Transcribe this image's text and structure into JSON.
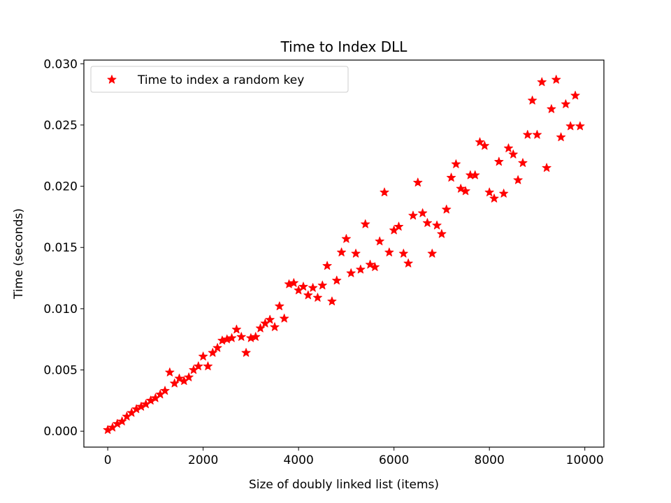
{
  "chart_data": {
    "type": "scatter",
    "title": "Time to Index DLL",
    "xlabel": "Size of doubly linked list (items)",
    "ylabel": "Time (seconds)",
    "xlim": [
      -500,
      10400
    ],
    "ylim": [
      -0.0013,
      0.0303
    ],
    "xticks": [
      0,
      2000,
      4000,
      6000,
      8000,
      10000
    ],
    "xtick_labels": [
      "0",
      "2000",
      "4000",
      "6000",
      "8000",
      "10000"
    ],
    "yticks": [
      0.0,
      0.005,
      0.01,
      0.015,
      0.02,
      0.025,
      0.03
    ],
    "ytick_labels": [
      "0.000",
      "0.005",
      "0.010",
      "0.015",
      "0.020",
      "0.025",
      "0.030"
    ],
    "grid": false,
    "legend_position": "top-left",
    "marker": "star",
    "color": "#ff0000",
    "series": [
      {
        "name": "Time to index a random key",
        "x": [
          0,
          100,
          200,
          300,
          400,
          500,
          600,
          700,
          800,
          900,
          1000,
          1100,
          1200,
          1300,
          1400,
          1500,
          1600,
          1700,
          1800,
          1900,
          2000,
          2100,
          2200,
          2300,
          2400,
          2500,
          2600,
          2700,
          2800,
          2900,
          3000,
          3100,
          3200,
          3300,
          3400,
          3500,
          3600,
          3700,
          3800,
          3900,
          4000,
          4100,
          4200,
          4300,
          4400,
          4500,
          4600,
          4700,
          4800,
          4900,
          5000,
          5100,
          5200,
          5300,
          5400,
          5500,
          5600,
          5700,
          5800,
          5900,
          6000,
          6100,
          6200,
          6300,
          6400,
          6500,
          6600,
          6700,
          6800,
          6900,
          7000,
          7100,
          7200,
          7300,
          7400,
          7500,
          7600,
          7700,
          7800,
          7900,
          8000,
          8100,
          8200,
          8300,
          8400,
          8500,
          8600,
          8700,
          8800,
          8900,
          9000,
          9100,
          9200,
          9300,
          9400,
          9500,
          9600,
          9700,
          9800,
          9900
        ],
        "y": [
          0.0001,
          0.0003,
          0.0006,
          0.0008,
          0.0012,
          0.0015,
          0.0018,
          0.002,
          0.0022,
          0.0025,
          0.0027,
          0.003,
          0.0033,
          0.0048,
          0.0039,
          0.0043,
          0.0041,
          0.0044,
          0.005,
          0.0053,
          0.0061,
          0.0053,
          0.0064,
          0.0068,
          0.0074,
          0.0075,
          0.0076,
          0.0083,
          0.0077,
          0.0064,
          0.0076,
          0.0077,
          0.0084,
          0.0088,
          0.0091,
          0.0085,
          0.0102,
          0.0092,
          0.012,
          0.0121,
          0.0115,
          0.0118,
          0.0111,
          0.0117,
          0.0109,
          0.0119,
          0.0135,
          0.0106,
          0.0123,
          0.0146,
          0.0157,
          0.0129,
          0.0145,
          0.0132,
          0.0169,
          0.0136,
          0.0134,
          0.0155,
          0.0195,
          0.0146,
          0.0164,
          0.0167,
          0.0145,
          0.0137,
          0.0176,
          0.0203,
          0.0178,
          0.017,
          0.0145,
          0.0168,
          0.0161,
          0.0181,
          0.0207,
          0.0218,
          0.0198,
          0.0196,
          0.0209,
          0.0209,
          0.0236,
          0.0233,
          0.0195,
          0.019,
          0.022,
          0.0194,
          0.0231,
          0.0226,
          0.0205,
          0.0219,
          0.0242,
          0.027,
          0.0242,
          0.0285,
          0.0215,
          0.0263,
          0.0287,
          0.024,
          0.0267,
          0.0249,
          0.0274,
          0.0249
        ]
      }
    ]
  }
}
